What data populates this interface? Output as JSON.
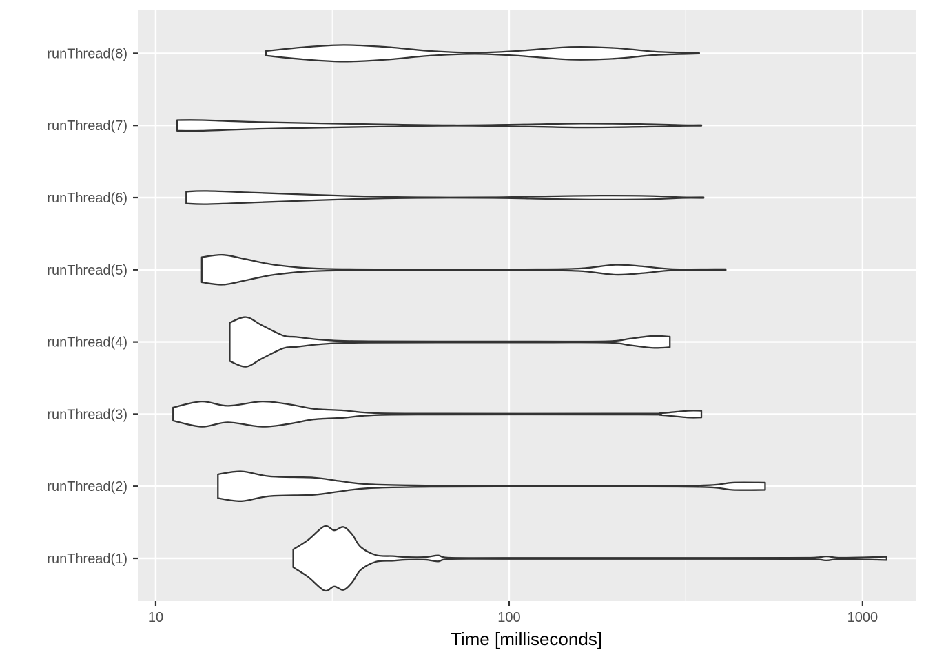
{
  "chart_data": {
    "type": "violin",
    "orientation": "horizontal",
    "title": "",
    "xlabel": "Time [milliseconds]",
    "ylabel": "",
    "x_scale": "log10",
    "xlim": [
      8.9,
      1420
    ],
    "x_ticks": [
      {
        "value": 10,
        "label": "10"
      },
      {
        "value": 100,
        "label": "100"
      },
      {
        "value": 1000,
        "label": "1000"
      }
    ],
    "x_minor_ticks": [
      31.6,
      316
    ],
    "grid": true,
    "categories": [
      "runThread(1)",
      "runThread(2)",
      "runThread(3)",
      "runThread(4)",
      "runThread(5)",
      "runThread(6)",
      "runThread(7)",
      "runThread(8)"
    ],
    "series": [
      {
        "name": "runThread(1)",
        "min": 24.5,
        "max": 1170,
        "density": [
          [
            24.5,
            0.27
          ],
          [
            27,
            0.56
          ],
          [
            30,
            0.97
          ],
          [
            32,
            0.85
          ],
          [
            34,
            0.95
          ],
          [
            36,
            0.72
          ],
          [
            38,
            0.35
          ],
          [
            42,
            0.1
          ],
          [
            47,
            0.07
          ],
          [
            51,
            0.04
          ],
          [
            58,
            0.04
          ],
          [
            63,
            0.09
          ],
          [
            68,
            0.02
          ],
          [
            100,
            0.015
          ],
          [
            400,
            0.015
          ],
          [
            700,
            0.02
          ],
          [
            790,
            0.06
          ],
          [
            870,
            0.02
          ],
          [
            1170,
            0.05
          ]
        ]
      },
      {
        "name": "runThread(2)",
        "min": 15,
        "max": 530,
        "density": [
          [
            15,
            0.36
          ],
          [
            17.5,
            0.45
          ],
          [
            21,
            0.3
          ],
          [
            28,
            0.26
          ],
          [
            33,
            0.16
          ],
          [
            40,
            0.06
          ],
          [
            60,
            0.02
          ],
          [
            120,
            0.01
          ],
          [
            300,
            0.015
          ],
          [
            380,
            0.04
          ],
          [
            430,
            0.11
          ],
          [
            530,
            0.11
          ]
        ]
      },
      {
        "name": "runThread(3)",
        "min": 11.2,
        "max": 350,
        "density": [
          [
            11.2,
            0.2
          ],
          [
            13.5,
            0.38
          ],
          [
            16,
            0.25
          ],
          [
            20,
            0.38
          ],
          [
            24,
            0.29
          ],
          [
            28,
            0.16
          ],
          [
            34,
            0.11
          ],
          [
            40,
            0.04
          ],
          [
            55,
            0.015
          ],
          [
            230,
            0.015
          ],
          [
            270,
            0.03
          ],
          [
            320,
            0.1
          ],
          [
            350,
            0.1
          ]
        ]
      },
      {
        "name": "runThread(4)",
        "min": 16.2,
        "max": 285,
        "density": [
          [
            16.2,
            0.58
          ],
          [
            18,
            0.75
          ],
          [
            20,
            0.5
          ],
          [
            23,
            0.19
          ],
          [
            25,
            0.15
          ],
          [
            30,
            0.06
          ],
          [
            40,
            0.02
          ],
          [
            120,
            0.015
          ],
          [
            190,
            0.02
          ],
          [
            220,
            0.1
          ],
          [
            255,
            0.18
          ],
          [
            285,
            0.16
          ]
        ]
      },
      {
        "name": "runThread(5)",
        "min": 13.5,
        "max": 410,
        "density": [
          [
            13.5,
            0.38
          ],
          [
            15.5,
            0.45
          ],
          [
            18,
            0.32
          ],
          [
            22,
            0.14
          ],
          [
            30,
            0.03
          ],
          [
            60,
            0.01
          ],
          [
            120,
            0.015
          ],
          [
            160,
            0.04
          ],
          [
            200,
            0.15
          ],
          [
            240,
            0.1
          ],
          [
            290,
            0.02
          ],
          [
            410,
            0.02
          ]
        ]
      },
      {
        "name": "runThread(6)",
        "min": 12.2,
        "max": 355,
        "density": [
          [
            12.2,
            0.18
          ],
          [
            14,
            0.2
          ],
          [
            20,
            0.14
          ],
          [
            35,
            0.05
          ],
          [
            55,
            0.01
          ],
          [
            90,
            0.01
          ],
          [
            130,
            0.04
          ],
          [
            180,
            0.06
          ],
          [
            250,
            0.05
          ],
          [
            310,
            0.01
          ],
          [
            355,
            0.01
          ]
        ]
      },
      {
        "name": "runThread(7)",
        "min": 11.5,
        "max": 350,
        "density": [
          [
            11.5,
            0.16
          ],
          [
            13.5,
            0.16
          ],
          [
            20,
            0.1
          ],
          [
            40,
            0.04
          ],
          [
            70,
            0.005
          ],
          [
            110,
            0.03
          ],
          [
            160,
            0.06
          ],
          [
            240,
            0.04
          ],
          [
            310,
            0.01
          ],
          [
            350,
            0.008
          ]
        ]
      },
      {
        "name": "runThread(8)",
        "min": 20.5,
        "max": 345,
        "density": [
          [
            20.5,
            0.07
          ],
          [
            26,
            0.18
          ],
          [
            34,
            0.25
          ],
          [
            45,
            0.19
          ],
          [
            60,
            0.07
          ],
          [
            80,
            0.02
          ],
          [
            105,
            0.07
          ],
          [
            150,
            0.19
          ],
          [
            200,
            0.16
          ],
          [
            260,
            0.05
          ],
          [
            345,
            0.01
          ]
        ]
      }
    ],
    "colors": {
      "panel": "#ebebeb",
      "grid_major": "#ffffff",
      "violin_fill": "#ffffff",
      "violin_stroke": "#333333",
      "tick": "#333333"
    }
  }
}
